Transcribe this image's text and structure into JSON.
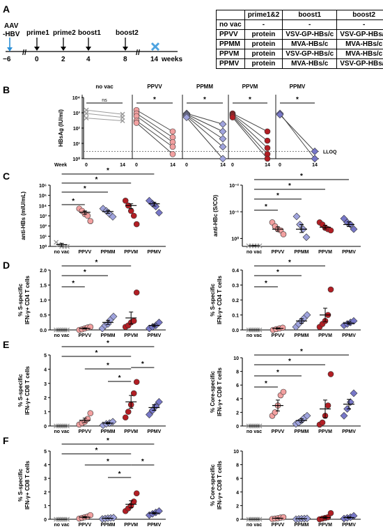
{
  "panel_letters": [
    "A",
    "B",
    "C",
    "D",
    "E",
    "F"
  ],
  "timeline": {
    "aav_label_1": "AAV",
    "aav_label_2": "-HBV",
    "points": [
      {
        "label": "prime1",
        "week": "0"
      },
      {
        "label": "prime2",
        "week": "2"
      },
      {
        "label": "boost1",
        "week": "4"
      },
      {
        "label": "boost2",
        "week": "8"
      }
    ],
    "start_week": "−6",
    "end_week": "14",
    "end_unit": "weeks",
    "colors": {
      "aav_arrow": "#2b8fd6",
      "endpoint_cross": "#4da3e0"
    }
  },
  "table": {
    "headers": [
      "",
      "prime1&2",
      "boost1",
      "boost2"
    ],
    "rows": [
      [
        "no vac",
        "-",
        "-",
        "-"
      ],
      [
        "PPVV",
        "protein",
        "VSV-GP-HBs/c",
        "VSV-GP-HBs/c"
      ],
      [
        "PPMM",
        "protein",
        "MVA-HBs/c",
        "MVA-HBs/c"
      ],
      [
        "PPVM",
        "protein",
        "VSV-GP-HBs/c",
        "MVA-HBs/c"
      ],
      [
        "PPMV",
        "protein",
        "MVA-HBs/c",
        "VSV-GP-HBs/c"
      ]
    ]
  },
  "groups": [
    "no vac",
    "PPVV",
    "PPMM",
    "PPVM",
    "PPMV"
  ],
  "colors": {
    "no vac": "#9a9a9a",
    "PPVV": "#f2a0a0",
    "PPMM": "#9fa3dd",
    "PPVM": "#b21e24",
    "PPMV": "#7777c8",
    "edge": "#333333",
    "pair_line": "#444444"
  },
  "significance_mark": "*",
  "chart_data": [
    {
      "id": "B",
      "type": "scatter",
      "ylabel": "HBsAg (IU/ml)",
      "xlabel": "Week",
      "x": [
        "0",
        "14"
      ],
      "log_y": true,
      "ylim_exponents": [
        0,
        4
      ],
      "yticks": [
        "10⁰",
        "10¹",
        "10²",
        "10³",
        "10⁴"
      ],
      "lloq_label": "LLOQ",
      "lloq": 3,
      "significance_ns": "ns",
      "series": [
        {
          "group": "no vac",
          "values": [
            [
              1500,
              800
            ],
            [
              900,
              500
            ],
            [
              450,
              300
            ]
          ]
        },
        {
          "group": "PPVV",
          "values": [
            [
              1500,
              60
            ],
            [
              900,
              25
            ],
            [
              600,
              12
            ],
            [
              300,
              6
            ],
            [
              220,
              2
            ]
          ]
        },
        {
          "group": "PPMM",
          "values": [
            [
              900,
              180
            ],
            [
              800,
              60
            ],
            [
              700,
              20
            ],
            [
              600,
              6
            ],
            [
              500,
              1
            ]
          ]
        },
        {
          "group": "PPVM",
          "values": [
            [
              900,
              60
            ],
            [
              800,
              15
            ],
            [
              700,
              5
            ],
            [
              600,
              2
            ],
            [
              500,
              1
            ]
          ]
        },
        {
          "group": "PPMV",
          "values": [
            [
              900,
              1
            ],
            [
              750,
              3
            ]
          ]
        }
      ]
    },
    {
      "id": "C1",
      "type": "scatter",
      "ylabel": "anti-HBs (mIU/mL)",
      "log_y": true,
      "ylim_exponents": [
        0,
        6
      ],
      "yticks": [
        "10⁰",
        "10¹",
        "10²",
        "10³",
        "10⁴",
        "10⁵",
        "10⁶"
      ],
      "categories": [
        "no vac",
        "PPVV",
        "PPMM",
        "PPVM",
        "PPMV"
      ],
      "values": [
        [
          2.5,
          1.5,
          1,
          1,
          1
        ],
        [
          5000,
          3000,
          1500,
          1000,
          300
        ],
        [
          5000,
          3000,
          1500,
          800
        ],
        [
          30000,
          10000,
          3000,
          1000,
          150
        ],
        [
          30000,
          15000,
          8000,
          2000
        ]
      ],
      "means": [
        1.5,
        2200,
        2600,
        10000,
        15000
      ],
      "sems": [
        0.5,
        800,
        900,
        5000,
        6000
      ]
    },
    {
      "id": "C2",
      "type": "scatter",
      "ylabel": "anti-HBc (S/CO)",
      "log_y": true,
      "reversed_y": true,
      "yticks": [
        "10⁻²",
        "10⁻¹",
        "10⁰"
      ],
      "categories": [
        "no vac",
        "PPVV",
        "PPMM",
        "PPVM",
        "PPMV"
      ],
      "values": [
        [
          1.9,
          1.9,
          1.9,
          1.9,
          1.9
        ],
        [
          0.25,
          0.35,
          0.45,
          0.5,
          0.7
        ],
        [
          0.15,
          0.3,
          0.45,
          0.9
        ],
        [
          0.25,
          0.3,
          0.4,
          0.45,
          0.5
        ],
        [
          0.18,
          0.25,
          0.3,
          0.45
        ]
      ],
      "means": [
        1.9,
        0.45,
        0.45,
        0.38,
        0.3
      ],
      "sems": [
        0.05,
        0.08,
        0.15,
        0.06,
        0.06
      ]
    },
    {
      "id": "D1",
      "type": "scatter",
      "ylabel": "% S-specific IFN-γ+ CD4 T cells",
      "ylim": [
        0,
        2.0
      ],
      "yticks": [
        "0.0",
        "0.5",
        "1.0",
        "1.5",
        "2.0"
      ],
      "categories": [
        "no vac",
        "PPVV",
        "PPMM",
        "PPVM",
        "PPMV"
      ],
      "values": [
        [
          0,
          0,
          0,
          0,
          0,
          0
        ],
        [
          0.0,
          0.02,
          0.05,
          0.08,
          0.1
        ],
        [
          0.05,
          0.15,
          0.2,
          0.35,
          0.45
        ],
        [
          0.1,
          0.15,
          0.25,
          0.3,
          1.25
        ],
        [
          0.05,
          0.1,
          0.15,
          0.25
        ]
      ],
      "means": [
        0,
        0.05,
        0.25,
        0.4,
        0.15
      ],
      "sems": [
        0,
        0.02,
        0.07,
        0.2,
        0.04
      ]
    },
    {
      "id": "D2",
      "type": "scatter",
      "ylabel": "% S-specific IFN-γ+ CD4 T cells",
      "ylim": [
        0,
        0.4
      ],
      "yticks": [
        "0.0",
        "0.1",
        "0.2",
        "0.3",
        "0.4"
      ],
      "categories": [
        "no vac",
        "PPVV",
        "PPMM",
        "PPVM",
        "PPMV"
      ],
      "values": [
        [
          0,
          0,
          0,
          0,
          0,
          0
        ],
        [
          0.0,
          0.005,
          0.01,
          0.015
        ],
        [
          0.02,
          0.04,
          0.06,
          0.08,
          0.1
        ],
        [
          0.02,
          0.04,
          0.06,
          0.1,
          0.27
        ],
        [
          0.03,
          0.04,
          0.05,
          0.06
        ]
      ],
      "means": [
        0,
        0.01,
        0.06,
        0.1,
        0.045
      ],
      "sems": [
        0,
        0.004,
        0.015,
        0.045,
        0.008
      ]
    },
    {
      "id": "E1",
      "type": "scatter",
      "ylabel": "% S-specific IFN-γ+ CD8 T cells",
      "ylim": [
        0,
        5
      ],
      "yticks": [
        "0",
        "1",
        "2",
        "3",
        "4",
        "5"
      ],
      "categories": [
        "no vac",
        "PPVV",
        "PPMM",
        "PPVM",
        "PPMV"
      ],
      "values": [
        [
          0,
          0,
          0,
          0,
          0,
          0
        ],
        [
          0.1,
          0.2,
          0.3,
          0.5,
          0.9
        ],
        [
          0.05,
          0.15,
          0.2,
          0.3
        ],
        [
          0.6,
          1.0,
          1.5,
          2.3,
          3.1
        ],
        [
          0.8,
          1.1,
          1.4,
          1.7
        ]
      ],
      "means": [
        0,
        0.4,
        0.2,
        1.7,
        1.3
      ],
      "sems": [
        0,
        0.15,
        0.05,
        0.45,
        0.2
      ]
    },
    {
      "id": "E2",
      "type": "scatter",
      "ylabel": "% Core-specific IFN-γ+ CD8 T cells",
      "ylim": [
        0,
        10
      ],
      "yticks": [
        "0",
        "2",
        "4",
        "6",
        "8",
        "10"
      ],
      "categories": [
        "no vac",
        "PPVV",
        "PPMM",
        "PPVM",
        "PPMV"
      ],
      "values": [
        [
          0,
          0,
          0,
          0,
          0,
          0
        ],
        [
          1.5,
          2.0,
          3.0,
          4.5,
          5.0
        ],
        [
          0.3,
          0.5,
          0.8,
          1.2,
          1.5
        ],
        [
          0.2,
          0.5,
          1.5,
          3.0,
          7.6
        ],
        [
          1.5,
          2.5,
          3.5,
          4.8
        ]
      ],
      "means": [
        0,
        3.0,
        0.8,
        2.5,
        3.2
      ],
      "sems": [
        0,
        0.8,
        0.25,
        1.3,
        0.7
      ]
    },
    {
      "id": "F1",
      "type": "scatter",
      "ylabel": "% S-specific IFN-γ+ CD8 T cells",
      "ylim": [
        0,
        5
      ],
      "yticks": [
        "0",
        "1",
        "2",
        "3",
        "4",
        "5"
      ],
      "categories": [
        "no vac",
        "PPVV",
        "PPMM",
        "PPVM",
        "PPMV"
      ],
      "values": [
        [
          0,
          0,
          0,
          0,
          0,
          0
        ],
        [
          0.05,
          0.1,
          0.15,
          0.2,
          0.3
        ],
        [
          0.02,
          0.05,
          0.08,
          0.1,
          0.12
        ],
        [
          0.6,
          0.8,
          1.0,
          1.3,
          1.9
        ],
        [
          0.3,
          0.4,
          0.5,
          0.6
        ]
      ],
      "means": [
        0,
        0.15,
        0.07,
        1.1,
        0.45
      ],
      "sems": [
        0,
        0.05,
        0.02,
        0.25,
        0.06
      ]
    },
    {
      "id": "F2",
      "type": "scatter",
      "ylabel": "% Core-specific IFN-γ+ CD8 T cells",
      "ylim": [
        0,
        10
      ],
      "yticks": [
        "0",
        "2",
        "4",
        "6",
        "8",
        "10"
      ],
      "categories": [
        "no vac",
        "PPVV",
        "PPMM",
        "PPVM",
        "PPMV"
      ],
      "values": [
        [
          0,
          0,
          0,
          0,
          0,
          0
        ],
        [
          0.05,
          0.1,
          0.15,
          0.25,
          0.3
        ],
        [
          0.0,
          0.05,
          0.08,
          0.1,
          0.12
        ],
        [
          0.0,
          0.1,
          0.2,
          0.3,
          0.9
        ],
        [
          0.1,
          0.2,
          0.3,
          0.5
        ]
      ],
      "means": [
        0,
        0.15,
        0.07,
        0.25,
        0.25
      ],
      "sems": [
        0,
        0.05,
        0.03,
        0.15,
        0.08
      ]
    }
  ]
}
